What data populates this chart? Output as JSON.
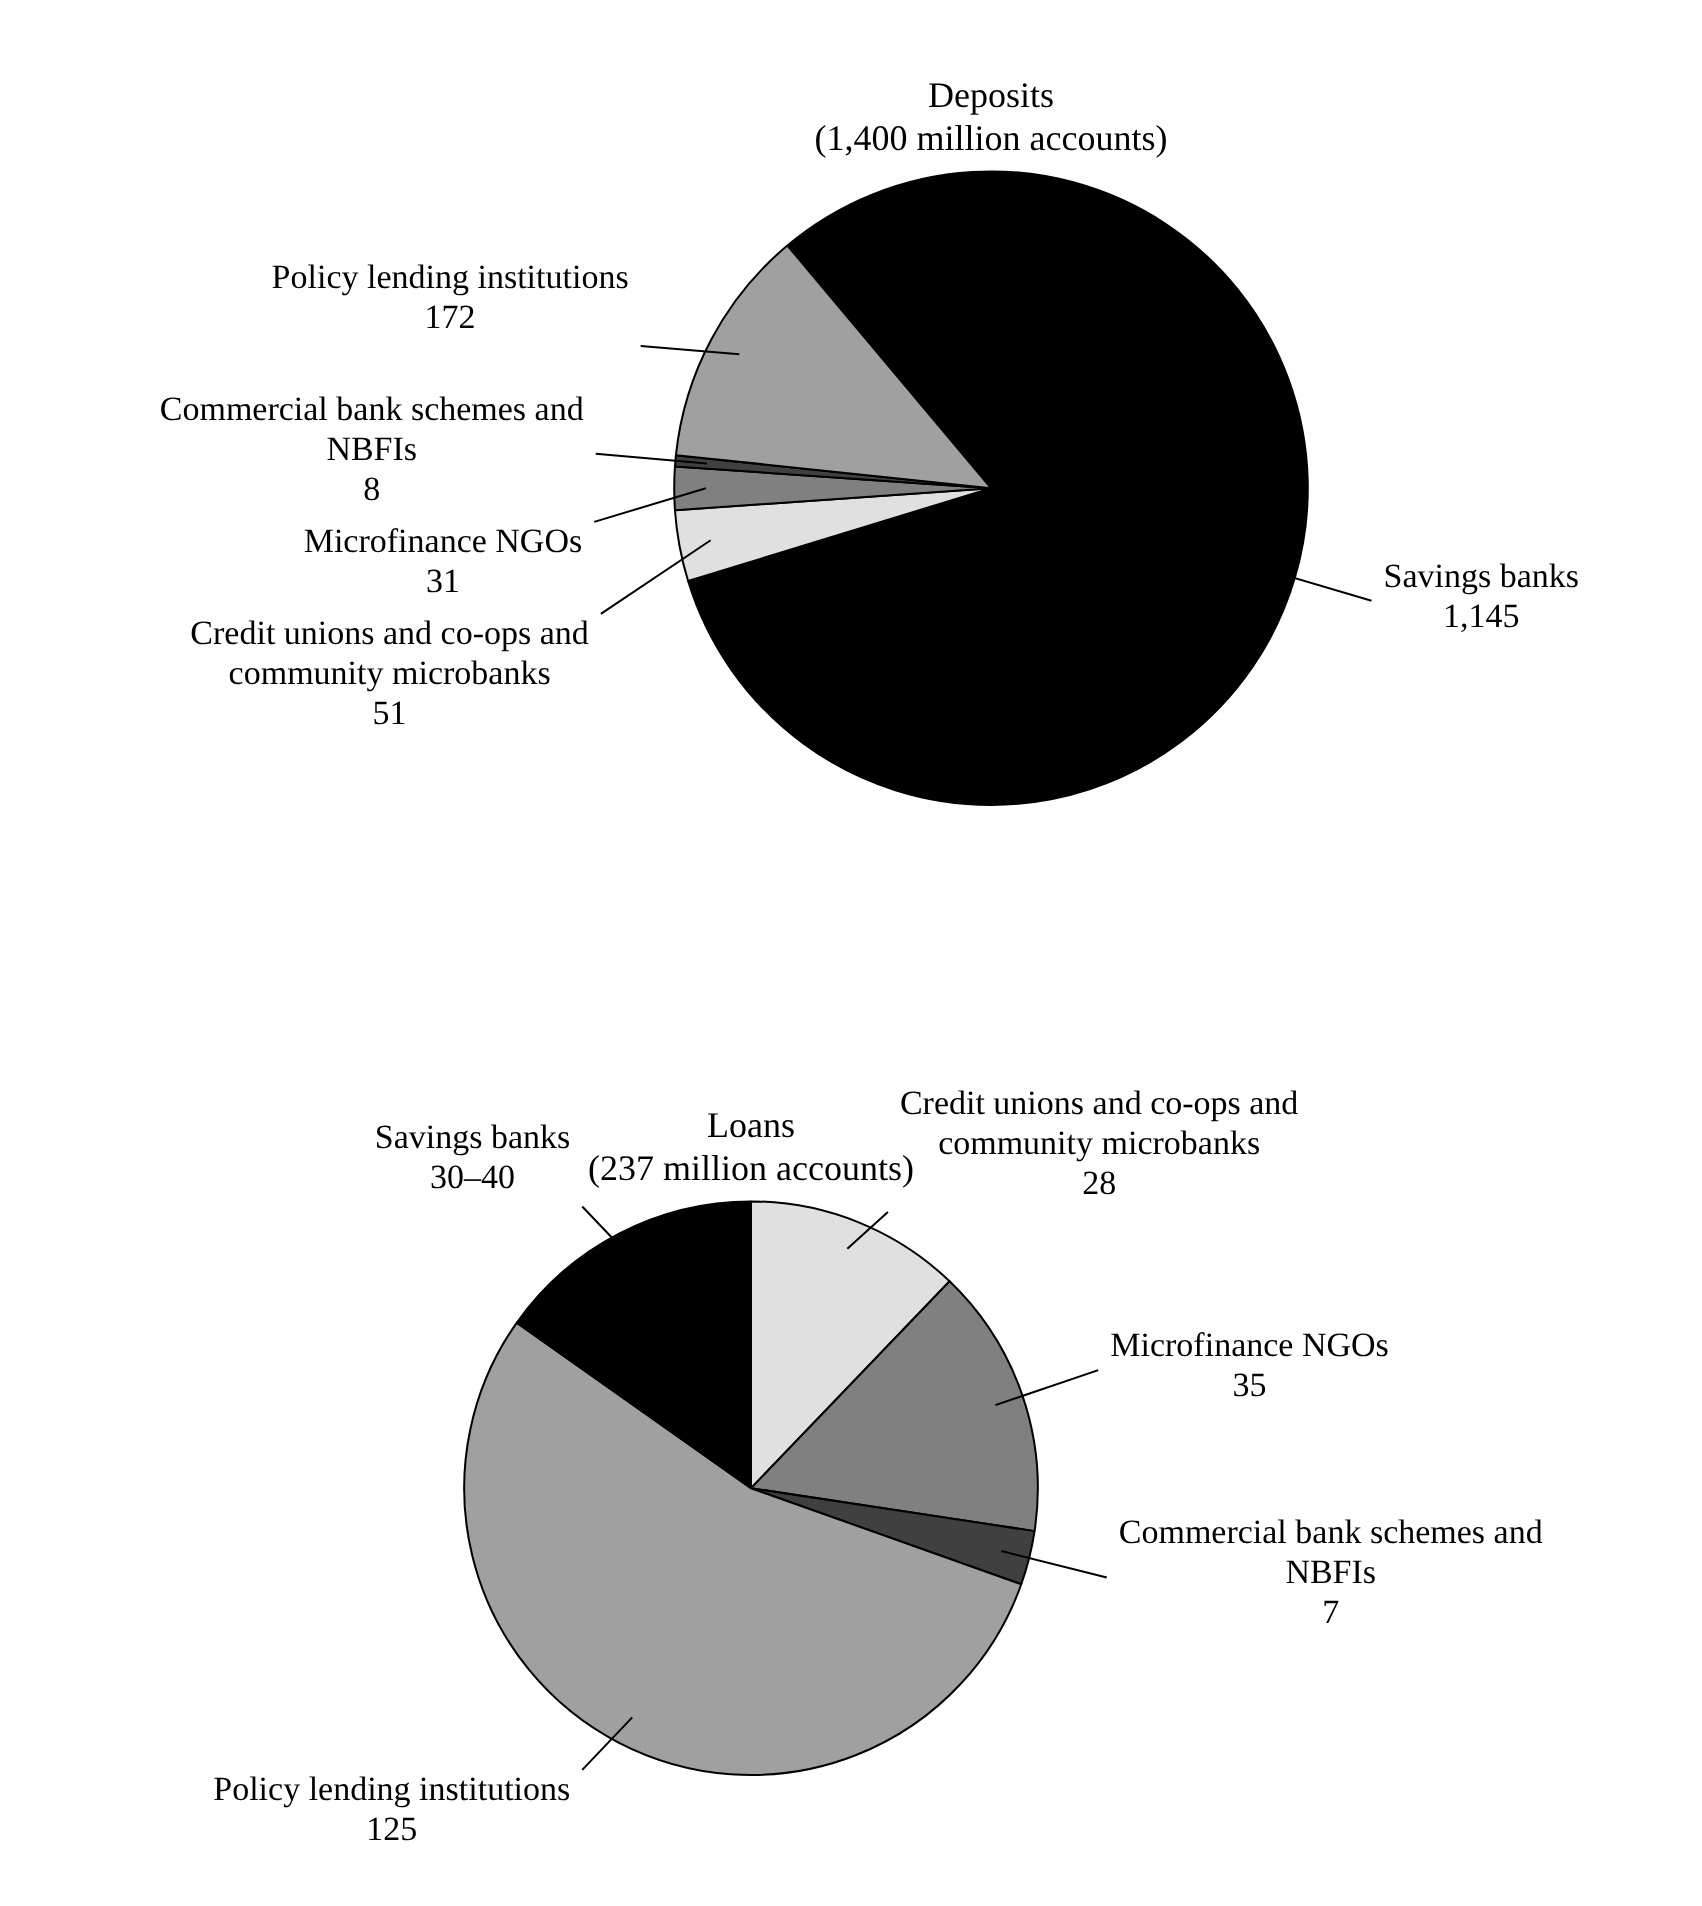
{
  "chart_data": [
    {
      "type": "pie",
      "title": "Deposits",
      "subtitle": "(1,400 million accounts)",
      "categories": [
        "Savings banks",
        "Credit unions and co-ops and community microbanks",
        "Microfinance NGOs",
        "Commercial bank schemes and NBFIs",
        "Policy lending institutions"
      ],
      "values": [
        1145,
        51,
        31,
        8,
        172
      ],
      "colors": [
        "#000000",
        "#e0e0e0",
        "#808080",
        "#404040",
        "#a0a0a0"
      ],
      "value_labels": [
        "1,145",
        "51",
        "31",
        "8",
        "172"
      ]
    },
    {
      "type": "pie",
      "title": "Loans",
      "subtitle": "(237 million accounts)",
      "categories": [
        "Credit unions and co-ops and community microbanks",
        "Microfinance NGOs",
        "Commercial bank schemes and NBFIs",
        "Policy lending institutions",
        "Savings banks"
      ],
      "values": [
        28,
        35,
        7,
        125,
        35
      ],
      "colors": [
        "#e0e0e0",
        "#808080",
        "#404040",
        "#a0a0a0",
        "#000000"
      ],
      "value_labels": [
        "28",
        "35",
        "7",
        "125",
        "30–40"
      ]
    }
  ]
}
